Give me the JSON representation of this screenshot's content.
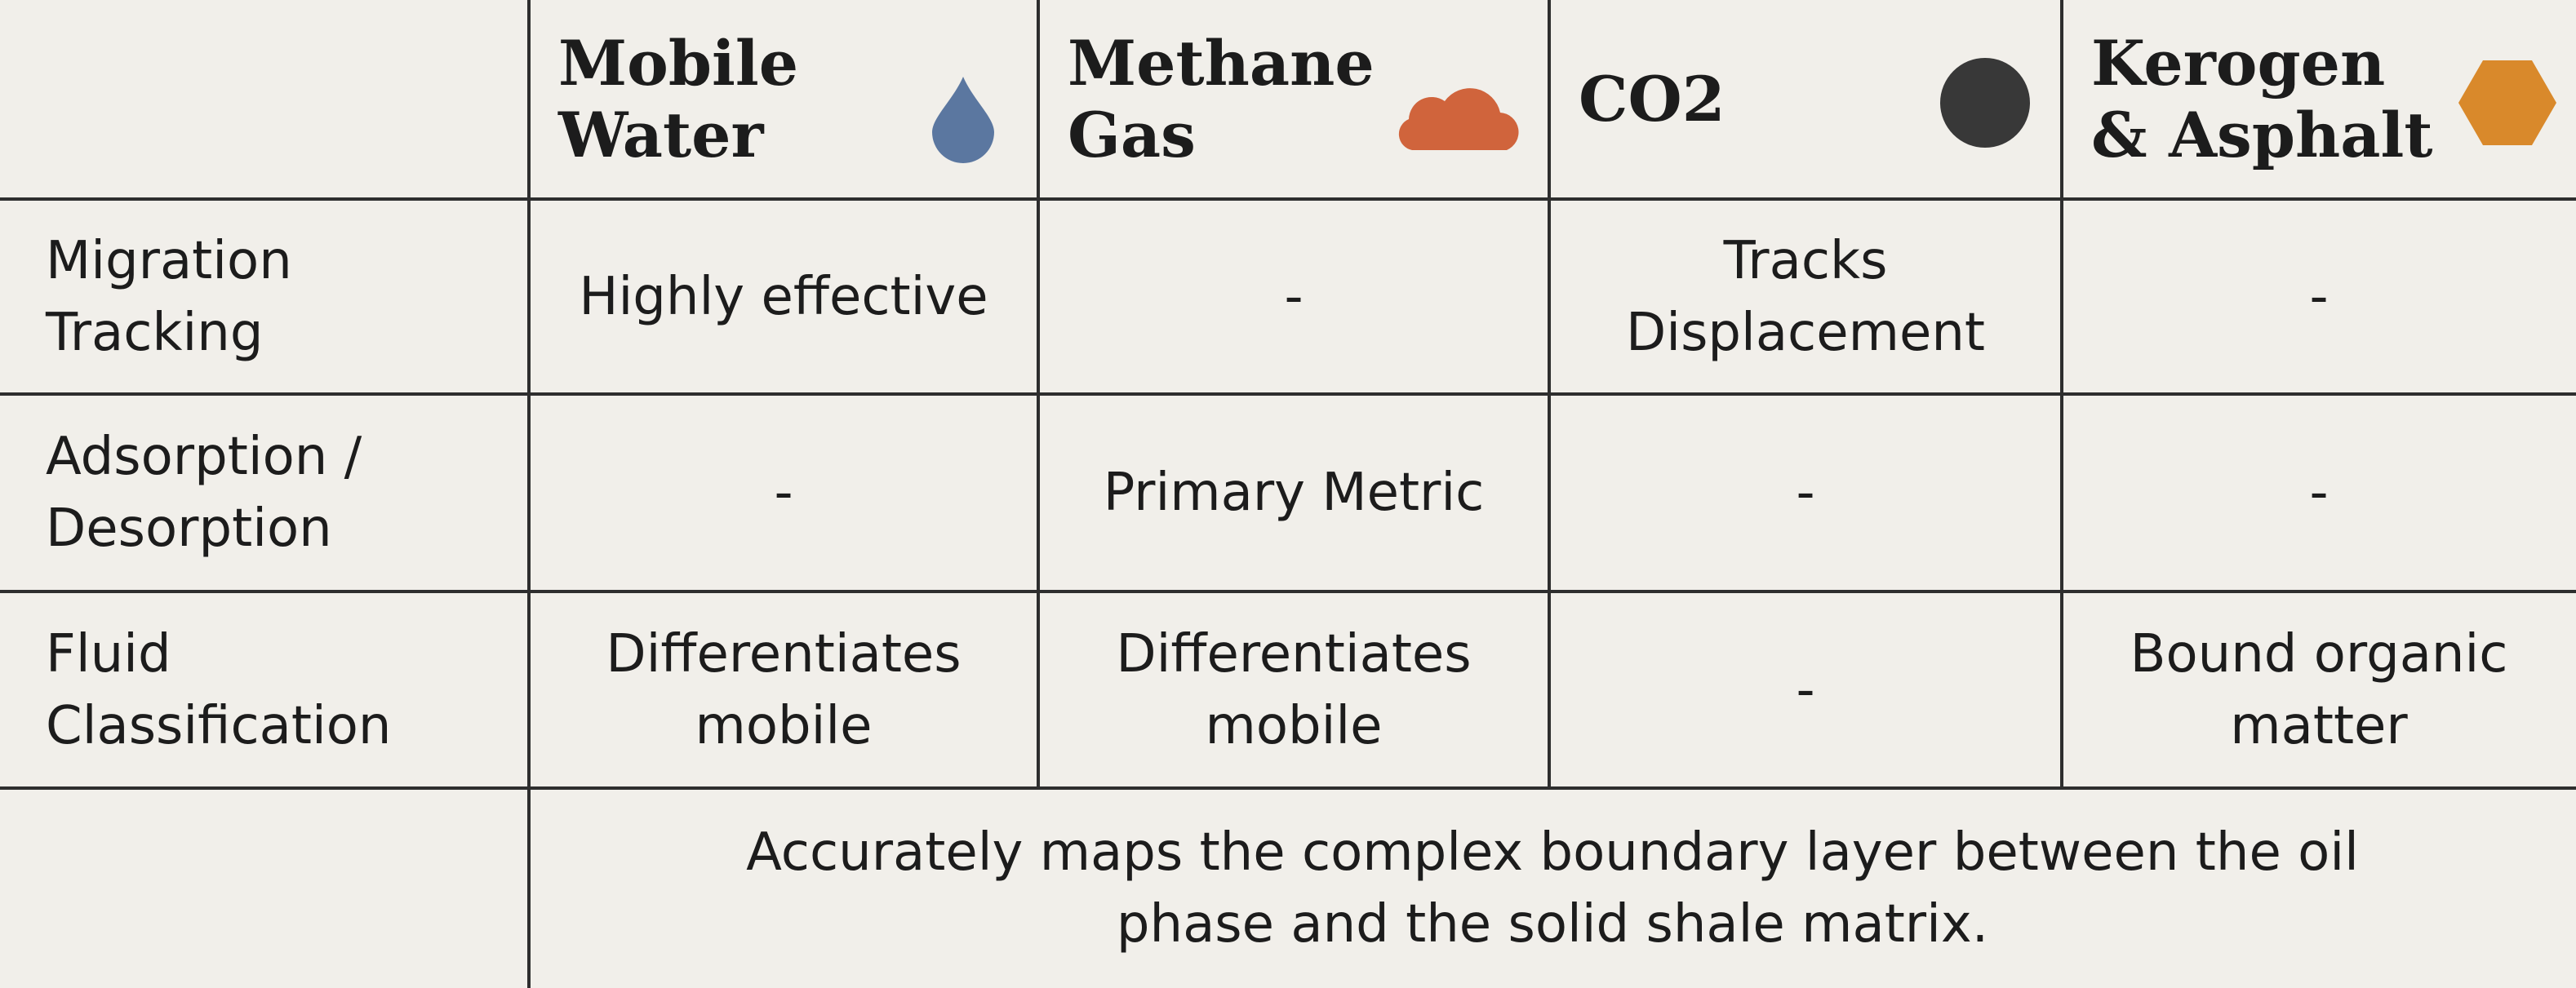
{
  "table": {
    "columns": [
      {
        "label": [
          "Mobile",
          "Water"
        ]
      },
      {
        "label": [
          "Methane",
          "Gas"
        ]
      },
      {
        "label": [
          "CO2"
        ]
      },
      {
        "label": [
          "Kerogen",
          "& Asphalt"
        ]
      }
    ],
    "rows": [
      {
        "label": [
          "Migration",
          "Tracking"
        ],
        "cells": [
          [
            "Highly effective"
          ],
          [
            "-"
          ],
          [
            "Tracks",
            "Displacement"
          ],
          [
            "-"
          ]
        ]
      },
      {
        "label": [
          "Adsorption /",
          "Desorption"
        ],
        "cells": [
          [
            "-"
          ],
          [
            "Primary Metric"
          ],
          [
            "-"
          ],
          [
            "-"
          ]
        ]
      },
      {
        "label": [
          "Fluid",
          "Classification"
        ],
        "cells": [
          [
            "Differentiates",
            "mobile"
          ],
          [
            "Differentiates",
            "mobile"
          ],
          [
            "-"
          ],
          [
            "Bound organic",
            "matter"
          ]
        ]
      }
    ],
    "footer": [
      "Accurately maps the complex boundary layer between the oil",
      "phase and the solid shale matrix."
    ]
  }
}
